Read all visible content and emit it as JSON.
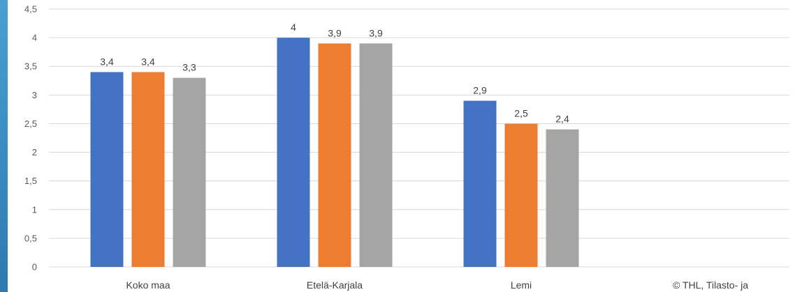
{
  "colors": {
    "left_strip": "#3b8fc4",
    "gridline": "#d9d9d9",
    "axis_text": "#595959"
  },
  "credit_text": "© THL, Tilasto- ja",
  "chart_data": {
    "type": "bar",
    "categories": [
      "Koko maa",
      "Etelä-Karjala",
      "Lemi"
    ],
    "series": [
      {
        "color": "#4472c4",
        "values": [
          3.4,
          4.0,
          2.9
        ],
        "labels": [
          "3,4",
          "4",
          "2,9"
        ]
      },
      {
        "color": "#ed7d31",
        "values": [
          3.4,
          3.9,
          2.5
        ],
        "labels": [
          "3,4",
          "3,9",
          "2,5"
        ]
      },
      {
        "color": "#a5a5a5",
        "values": [
          3.3,
          3.9,
          2.4
        ],
        "labels": [
          "3,3",
          "3,9",
          "2,4"
        ]
      }
    ],
    "ylim": [
      0,
      4.5
    ],
    "yticks": [
      0,
      0.5,
      1,
      1.5,
      2,
      2.5,
      3,
      3.5,
      4,
      4.5
    ],
    "ytick_labels": [
      "0",
      "0,5",
      "1",
      "1,5",
      "2",
      "2,5",
      "3",
      "3,5",
      "4",
      "4,5"
    ],
    "grid": true,
    "title": "",
    "xlabel": "",
    "ylabel": ""
  }
}
